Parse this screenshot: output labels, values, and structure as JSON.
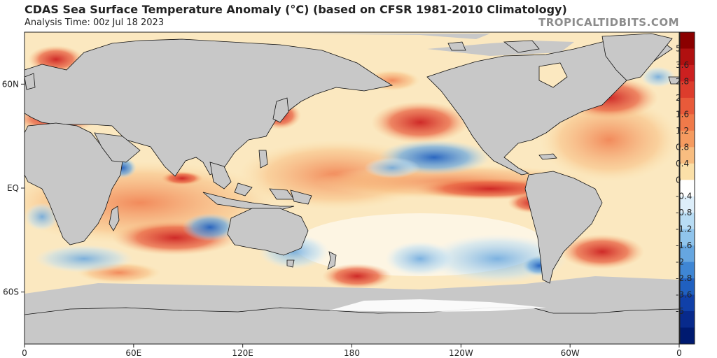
{
  "header": {
    "title": "CDAS Sea Surface Temperature Anomaly (°C) (based on CFSR 1981-2010 Climatology)",
    "analysis_time": "Analysis Time: 00z Jul 18 2023",
    "brand": "TROPICALTIDBITS.COM"
  },
  "axes": {
    "lat_ticks": [
      {
        "label": "60N",
        "lat": 60
      },
      {
        "label": "EQ",
        "lat": 0
      },
      {
        "label": "60S",
        "lat": -60
      }
    ],
    "lon_ticks": [
      {
        "label": "0",
        "lon": 0
      },
      {
        "label": "60E",
        "lon": 60
      },
      {
        "label": "120E",
        "lon": 120
      },
      {
        "label": "180",
        "lon": 180
      },
      {
        "label": "120W",
        "lon": 240
      },
      {
        "label": "60W",
        "lon": 300
      },
      {
        "label": "0",
        "lon": 360
      }
    ],
    "lon_range": [
      0,
      360
    ],
    "lat_range": [
      -90,
      90
    ]
  },
  "colorbar": {
    "labels": [
      "5",
      "3.6",
      "2.8",
      "2",
      "1.6",
      "1.2",
      "0.8",
      "0.4",
      "0",
      "-0.4",
      "-0.8",
      "-1.2",
      "-1.6",
      "-2",
      "-2.8",
      "-3.6",
      "-5"
    ],
    "colors": [
      "#8b0000",
      "#b01010",
      "#cc2020",
      "#dd3c2c",
      "#e85a3a",
      "#f07a4a",
      "#f59b60",
      "#f8bd80",
      "#fbe0a8",
      "#ffffff",
      "#ddeefa",
      "#b8dcf4",
      "#90c4ec",
      "#66a6e0",
      "#3f86d4",
      "#2060c0",
      "#1040a8",
      "#082a8c",
      "#001a70"
    ]
  },
  "colors": {
    "land": "#c8c8c8",
    "ice": "#c8c8c8",
    "coast": "#111111"
  }
}
